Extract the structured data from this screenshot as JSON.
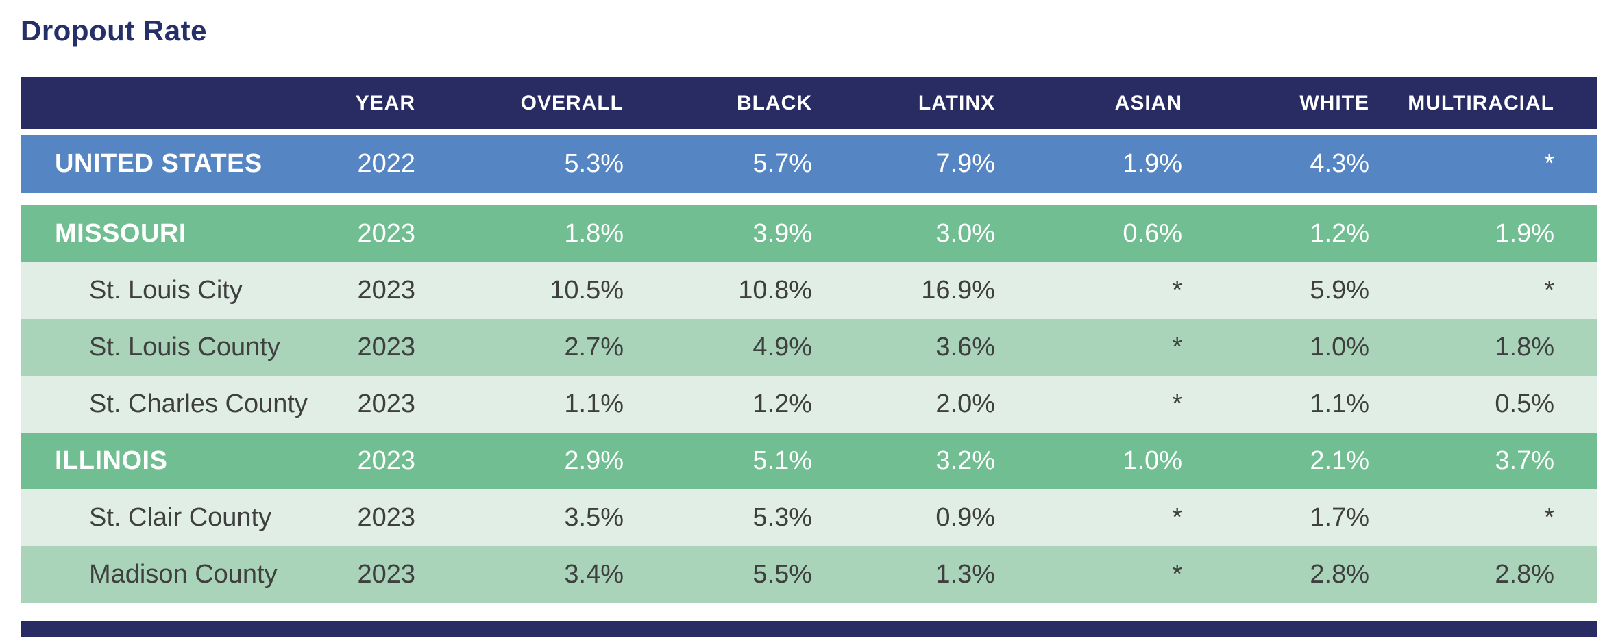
{
  "title": "Dropout Rate",
  "colors": {
    "navy": "#282c62",
    "title_navy": "#253069",
    "blue": "#5585c2",
    "green": "#72be93",
    "light_green": "#e0eee5",
    "medium_green": "#aad4b9"
  },
  "chart_data": {
    "type": "table",
    "title": "Dropout Rate",
    "columns": [
      "",
      "YEAR",
      "OVERALL",
      "BLACK",
      "LATINX",
      "ASIAN",
      "WHITE",
      "MULTIRACIAL"
    ],
    "rows": [
      {
        "name": "UNITED STATES",
        "type": "national",
        "year": "2022",
        "values": [
          "5.3%",
          "5.7%",
          "7.9%",
          "1.9%",
          "4.3%",
          "*"
        ]
      },
      {
        "name": "MISSOURI",
        "type": "state",
        "year": "2023",
        "values": [
          "1.8%",
          "3.9%",
          "3.0%",
          "0.6%",
          "1.2%",
          "1.9%"
        ]
      },
      {
        "name": "St. Louis City",
        "type": "sub-light",
        "year": "2023",
        "values": [
          "10.5%",
          "10.8%",
          "16.9%",
          "*",
          "5.9%",
          "*"
        ]
      },
      {
        "name": "St. Louis County",
        "type": "sub-medium",
        "year": "2023",
        "values": [
          "2.7%",
          "4.9%",
          "3.6%",
          "*",
          "1.0%",
          "1.8%"
        ]
      },
      {
        "name": "St. Charles County",
        "type": "sub-light",
        "year": "2023",
        "values": [
          "1.1%",
          "1.2%",
          "2.0%",
          "*",
          "1.1%",
          "0.5%"
        ]
      },
      {
        "name": "ILLINOIS",
        "type": "state",
        "year": "2023",
        "values": [
          "2.9%",
          "5.1%",
          "3.2%",
          "1.0%",
          "2.1%",
          "3.7%"
        ]
      },
      {
        "name": "St. Clair County",
        "type": "sub-light",
        "year": "2023",
        "values": [
          "3.5%",
          "5.3%",
          "0.9%",
          "*",
          "1.7%",
          "*"
        ]
      },
      {
        "name": "Madison County",
        "type": "sub-medium",
        "year": "2023",
        "values": [
          "3.4%",
          "5.5%",
          "1.3%",
          "*",
          "2.8%",
          "2.8%"
        ]
      }
    ],
    "footnote_symbol_meaning_shown": "*"
  }
}
